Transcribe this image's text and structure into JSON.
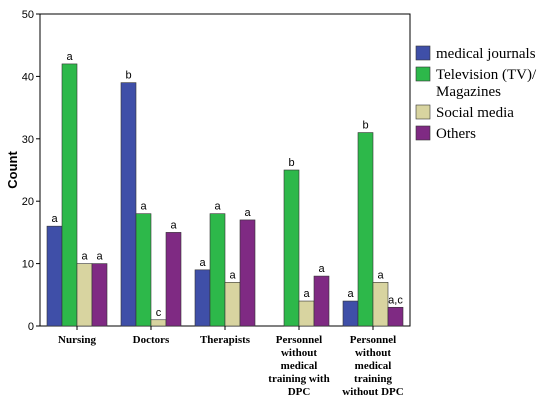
{
  "chart_data": {
    "type": "bar",
    "title": "",
    "xlabel": "",
    "ylabel": "Count",
    "ylim": [
      0,
      50
    ],
    "yticks": [
      0,
      10,
      20,
      30,
      40,
      50
    ],
    "grid": false,
    "legend_position": "right",
    "categories": [
      [
        "Nursing"
      ],
      [
        "Doctors"
      ],
      [
        "Therapists"
      ],
      [
        "Personnel",
        "without",
        "medical",
        "training with",
        "DPC"
      ],
      [
        "Personnel",
        "without",
        "medical",
        "training",
        "without DPC"
      ]
    ],
    "series": [
      {
        "name": "medical journals",
        "legend_lines": [
          "medical journals"
        ],
        "color": "#3f4fa8",
        "values": [
          16,
          39,
          9,
          null,
          4
        ],
        "labels": [
          "a",
          "b",
          "a",
          "",
          "a"
        ]
      },
      {
        "name": "Television (TV)/ Magazines",
        "legend_lines": [
          "Television (TV)/",
          "Magazines"
        ],
        "color": "#2db84a",
        "values": [
          42,
          18,
          18,
          25,
          31
        ],
        "labels": [
          "a",
          "a",
          "a",
          "b",
          "b"
        ]
      },
      {
        "name": "Social media",
        "legend_lines": [
          "Social media"
        ],
        "color": "#d8d4a0",
        "values": [
          10,
          1,
          7,
          4,
          7
        ],
        "labels": [
          "a",
          "c",
          "a",
          "a",
          "a"
        ]
      },
      {
        "name": "Others",
        "legend_lines": [
          "Others"
        ],
        "color": "#7f2a83",
        "values": [
          10,
          15,
          17,
          8,
          3
        ],
        "labels": [
          "a",
          "a",
          "a",
          "a",
          "a,c"
        ]
      }
    ]
  }
}
